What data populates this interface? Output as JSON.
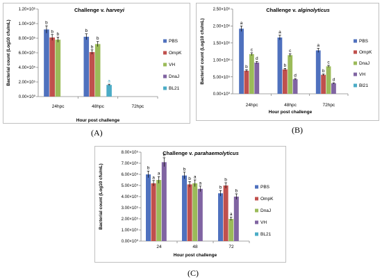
{
  "colors": {
    "series": [
      "#4f71be",
      "#c0504d",
      "#9bbb59",
      "#8064a2",
      "#4bacc6"
    ],
    "annotation": "#000000",
    "annotation_alt": "#4bacc6"
  },
  "chart_data": [
    {
      "type": "bar",
      "panel_label": "(A)",
      "title_prefix": "Challenge v. ",
      "title_italic": "harveyi",
      "xlabel": "Hour post challenge",
      "ylabel": "Bacterial count (Log10 cfu/mL)",
      "categories": [
        "24hpc",
        "48hpc",
        "72hpc"
      ],
      "ylim": [
        0,
        1200000
      ],
      "yticks": [
        0,
        200000,
        400000,
        600000,
        800000,
        1000000,
        1200000
      ],
      "yticklabels": [
        "0.00×10⁰",
        "2.00×10⁵",
        "4.00×10⁵",
        "6.00×10⁵",
        "8.00×10⁵",
        "1.00×10⁶",
        "1.20×10⁶"
      ],
      "grid": false,
      "legend": "right",
      "series": [
        {
          "name": "PBS",
          "values": [
            920000,
            820000,
            null
          ],
          "errors": [
            50000,
            40000,
            null
          ],
          "labels": [
            "b",
            "b",
            ""
          ]
        },
        {
          "name": "OmpK",
          "values": [
            810000,
            610000,
            null
          ],
          "errors": [
            40000,
            30000,
            null
          ],
          "labels": [
            "b",
            "b",
            ""
          ]
        },
        {
          "name": "VH",
          "values": [
            780000,
            720000,
            null
          ],
          "errors": [
            35000,
            35000,
            null
          ],
          "labels": [
            "b",
            "b",
            ""
          ]
        },
        {
          "name": "DnaJ",
          "values": [
            null,
            null,
            null
          ],
          "errors": [
            null,
            null,
            null
          ],
          "labels": [
            "",
            "",
            ""
          ]
        },
        {
          "name": "BL21",
          "values": [
            null,
            160000,
            null
          ],
          "errors": [
            null,
            10000,
            null
          ],
          "labels": [
            "",
            "a",
            ""
          ]
        }
      ]
    },
    {
      "type": "bar",
      "panel_label": "(B)",
      "title_prefix": "Challenge v. ",
      "title_italic": "alginolyticus",
      "xlabel": "Hour post challenge",
      "ylabel": "Bacterial count (Log10 cfu/mL)",
      "categories": [
        "24hpc",
        "48hpc",
        "72hpc"
      ],
      "ylim": [
        0,
        2500000
      ],
      "yticks": [
        0,
        500000,
        1000000,
        1500000,
        2000000,
        2500000
      ],
      "yticklabels": [
        "0.00×10⁰",
        "5.00×10⁵",
        "1.00×10⁶",
        "1.50×10⁶",
        "2.00×10⁶",
        "2.50×10⁶"
      ],
      "grid": false,
      "legend": "right",
      "series": [
        {
          "name": "PBS",
          "values": [
            1920000,
            1660000,
            1280000
          ],
          "errors": [
            80000,
            70000,
            60000
          ],
          "labels": [
            "a",
            "a",
            "a"
          ]
        },
        {
          "name": "OmpK",
          "values": [
            680000,
            720000,
            560000
          ],
          "errors": [
            30000,
            30000,
            25000
          ],
          "labels": [
            "b",
            "b",
            "b"
          ]
        },
        {
          "name": "DnaJ",
          "values": [
            1170000,
            1140000,
            810000
          ],
          "errors": [
            40000,
            40000,
            30000
          ],
          "labels": [
            "c",
            "c",
            "c"
          ]
        },
        {
          "name": "VH",
          "values": [
            920000,
            430000,
            310000
          ],
          "errors": [
            30000,
            20000,
            15000
          ],
          "labels": [
            "d",
            "d",
            "d"
          ]
        },
        {
          "name": "Bl21",
          "values": [
            null,
            null,
            null
          ],
          "errors": [
            null,
            null,
            null
          ],
          "labels": [
            "",
            "",
            ""
          ]
        }
      ]
    },
    {
      "type": "bar",
      "panel_label": "(C)",
      "title_prefix": "Challenge v. ",
      "title_italic": "parahaemolyticus",
      "xlabel": "Hour post challenge",
      "ylabel": "Bacterial count (Log10 cfu/mL)",
      "categories": [
        "24",
        "48",
        "72"
      ],
      "ylim": [
        0,
        800000
      ],
      "yticks": [
        0,
        100000,
        200000,
        300000,
        400000,
        500000,
        600000,
        700000,
        800000
      ],
      "yticklabels": [
        "0.00×10⁰",
        "1.00×10⁵",
        "2.00×10⁵",
        "3.00×10⁵",
        "4.00×10⁵",
        "5.00×10⁵",
        "6.00×10⁵",
        "7.00×10⁵",
        "8.00×10⁵"
      ],
      "grid": false,
      "legend": "right",
      "series": [
        {
          "name": "PBS",
          "values": [
            600000,
            590000,
            430000
          ],
          "errors": [
            30000,
            30000,
            25000
          ],
          "labels": [
            "b",
            "b",
            "b"
          ]
        },
        {
          "name": "OmpK",
          "values": [
            520000,
            510000,
            500000
          ],
          "errors": [
            25000,
            25000,
            25000
          ],
          "labels": [
            "a",
            "b",
            "b"
          ]
        },
        {
          "name": "DnaJ",
          "values": [
            550000,
            520000,
            200000
          ],
          "errors": [
            30000,
            30000,
            15000
          ],
          "labels": [
            "a",
            "a",
            "a"
          ]
        },
        {
          "name": "VH",
          "values": [
            710000,
            470000,
            400000
          ],
          "errors": [
            40000,
            25000,
            25000
          ],
          "labels": [
            "b",
            "a",
            "b"
          ]
        },
        {
          "name": "BL21",
          "values": [
            null,
            null,
            null
          ],
          "errors": [
            null,
            null,
            null
          ],
          "labels": [
            "",
            "",
            ""
          ]
        }
      ]
    }
  ]
}
